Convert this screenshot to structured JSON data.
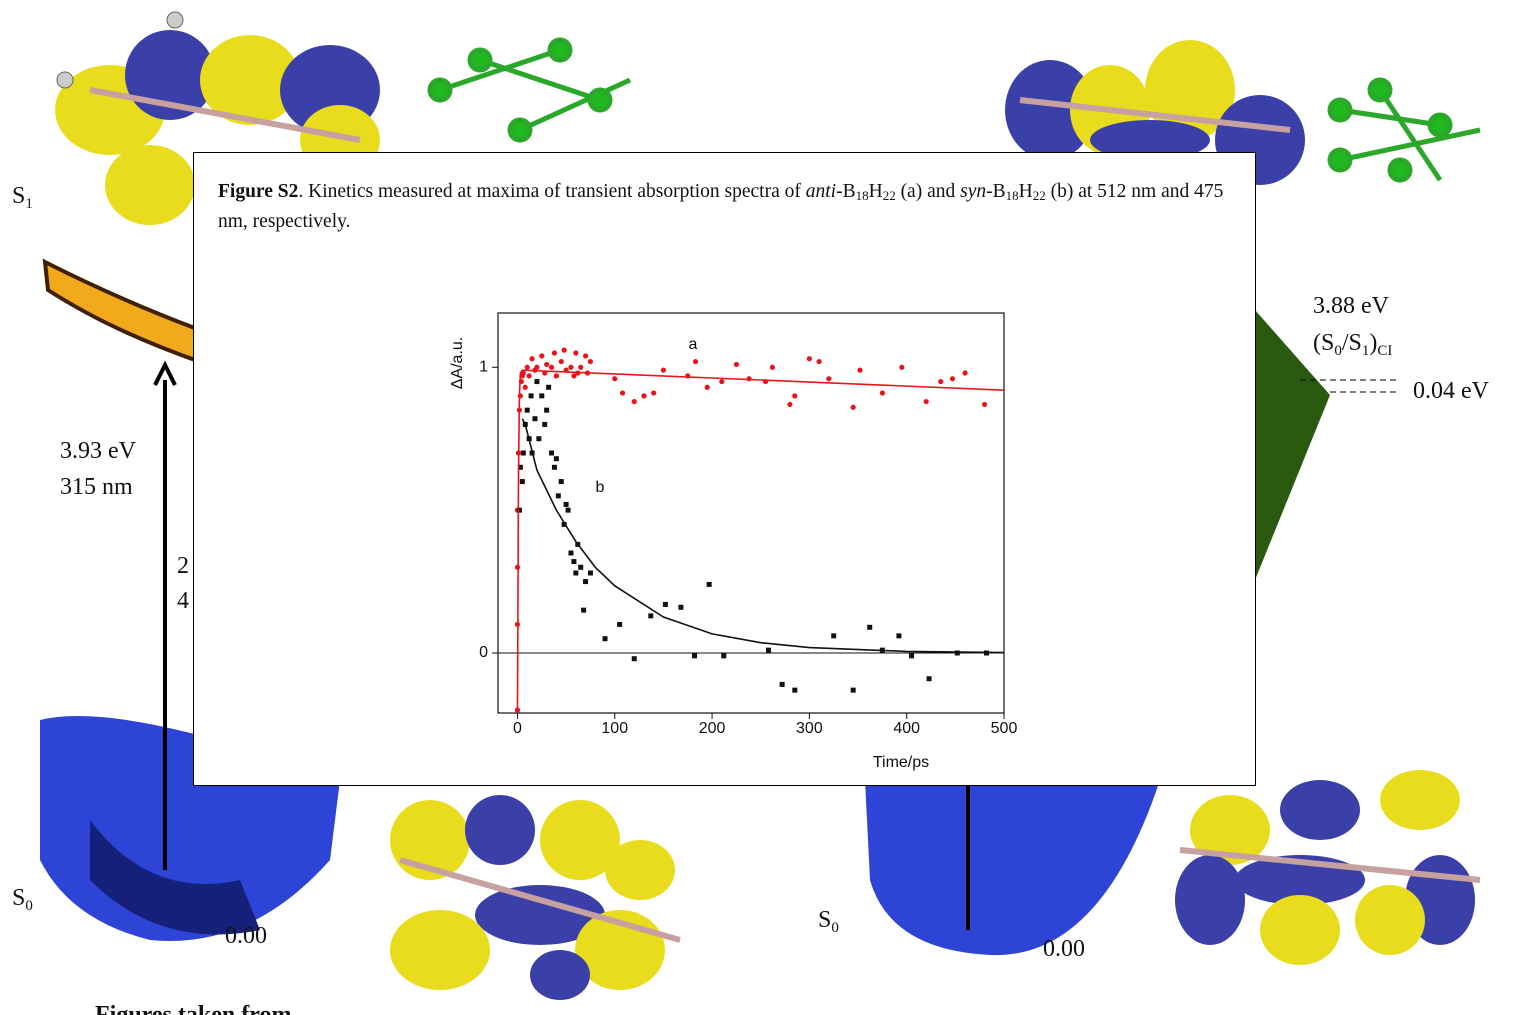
{
  "background": {
    "left": {
      "s1": {
        "text": "S",
        "sub": "1"
      },
      "energy": "3.93 eV",
      "wavelength": "315 nm",
      "hidden_1": "2",
      "hidden_2": "4",
      "s0": {
        "text": "S",
        "sub": "0"
      },
      "zero": "0.00"
    },
    "right": {
      "ci_energy": "3.88 eV",
      "ci_label": {
        "text": "(S",
        "sub1": "0",
        "mid": "/S",
        "sub2": "1",
        "end": ")",
        "sub3": "CI"
      },
      "gap": "0.04 eV",
      "s0": {
        "text": "S",
        "sub": "0"
      },
      "zero": "0.00"
    },
    "footer": "Figures taken from"
  },
  "caption": {
    "segments": [
      {
        "text": "Figure S2",
        "style": "bold"
      },
      {
        "text": ". Kinetics measured at maxima of transient absorption spectra of "
      },
      {
        "text": "anti",
        "style": "italic"
      },
      {
        "text": "-B"
      },
      {
        "text": "18",
        "style": "sub"
      },
      {
        "text": "H"
      },
      {
        "text": "22",
        "style": "sub"
      },
      {
        "text": " (a) and "
      },
      {
        "text": "syn",
        "style": "italic"
      },
      {
        "text": "-B"
      },
      {
        "text": "18",
        "style": "sub"
      },
      {
        "text": "H"
      },
      {
        "text": "22",
        "style": "sub"
      },
      {
        "text": " (b) at 512 nm and 475 nm, respectively."
      }
    ]
  },
  "chart_data": {
    "type": "scatter",
    "x_label": "Time/ps",
    "y_label": "ΔA/a.u.",
    "xlim": [
      -20,
      500
    ],
    "ylim": [
      -0.21,
      1.19
    ],
    "xticks": [
      0,
      100,
      200,
      300,
      400,
      500
    ],
    "yticks": [
      0,
      1
    ],
    "zero_line": true,
    "series": [
      {
        "name": "a",
        "color": "#e8141c",
        "mode": "markers",
        "marker": "circle",
        "x": [
          0,
          0,
          0,
          0,
          1,
          2,
          3,
          4,
          5,
          6,
          8,
          10,
          12,
          15,
          18,
          20,
          25,
          28,
          30,
          35,
          38,
          40,
          45,
          48,
          50,
          55,
          58,
          60,
          62,
          65,
          70,
          72,
          75,
          100,
          108,
          120,
          130,
          140,
          150,
          175,
          183,
          195,
          210,
          225,
          238,
          255,
          262,
          280,
          285,
          300,
          310,
          320,
          345,
          352,
          375,
          395,
          420,
          435,
          447,
          460,
          480
        ],
        "values": [
          -0.2,
          0.1,
          0.3,
          0.5,
          0.7,
          0.85,
          0.9,
          0.95,
          0.97,
          0.98,
          0.93,
          1.0,
          0.97,
          1.03,
          0.99,
          1.0,
          1.04,
          0.98,
          1.01,
          1.0,
          1.05,
          0.97,
          1.02,
          1.06,
          0.99,
          1.0,
          0.97,
          1.05,
          0.98,
          1.0,
          1.04,
          0.98,
          1.02,
          0.96,
          0.91,
          0.88,
          0.9,
          0.91,
          0.99,
          0.97,
          1.02,
          0.93,
          0.95,
          1.01,
          0.96,
          0.95,
          1.0,
          0.87,
          0.9,
          1.03,
          1.02,
          0.96,
          0.86,
          0.99,
          0.91,
          1.0,
          0.88,
          0.95,
          0.96,
          0.98,
          0.87
        ]
      },
      {
        "name": "b",
        "color": "#111111",
        "mode": "markers",
        "marker": "square",
        "x": [
          2,
          3,
          5,
          6,
          8,
          10,
          12,
          14,
          15,
          18,
          20,
          22,
          25,
          28,
          30,
          32,
          35,
          38,
          40,
          42,
          45,
          48,
          50,
          52,
          55,
          58,
          60,
          62,
          65,
          68,
          70,
          75,
          90,
          105,
          120,
          137,
          152,
          168,
          182,
          197,
          212,
          258,
          272,
          285,
          325,
          345,
          362,
          375,
          392,
          405,
          423,
          452,
          482
        ],
        "values": [
          0.5,
          0.65,
          0.6,
          0.7,
          0.8,
          0.85,
          0.75,
          0.9,
          0.7,
          0.82,
          0.95,
          0.75,
          0.9,
          0.8,
          0.85,
          0.93,
          0.7,
          0.65,
          0.68,
          0.55,
          0.6,
          0.45,
          0.52,
          0.5,
          0.35,
          0.32,
          0.28,
          0.38,
          0.3,
          0.15,
          0.25,
          0.28,
          0.05,
          0.1,
          -0.02,
          0.13,
          0.17,
          0.16,
          -0.01,
          0.24,
          -0.01,
          0.01,
          -0.11,
          -0.13,
          0.06,
          -0.13,
          0.09,
          0.01,
          0.06,
          -0.01,
          -0.09,
          0.0,
          0.0
        ]
      },
      {
        "color": "#e8141c",
        "mode": "line",
        "x": [
          0,
          1,
          2,
          3,
          5,
          500
        ],
        "values": [
          -0.21,
          0.6,
          0.9,
          0.98,
          0.99,
          0.92
        ]
      },
      {
        "color": "#111111",
        "mode": "line",
        "x": [
          5,
          8,
          20,
          40,
          60,
          80,
          100,
          150,
          200,
          250,
          300,
          400,
          500
        ],
        "values": [
          0.82,
          0.8,
          0.64,
          0.5,
          0.39,
          0.3,
          0.235,
          0.126,
          0.067,
          0.036,
          0.019,
          0.0055,
          0.0016
        ]
      }
    ]
  }
}
